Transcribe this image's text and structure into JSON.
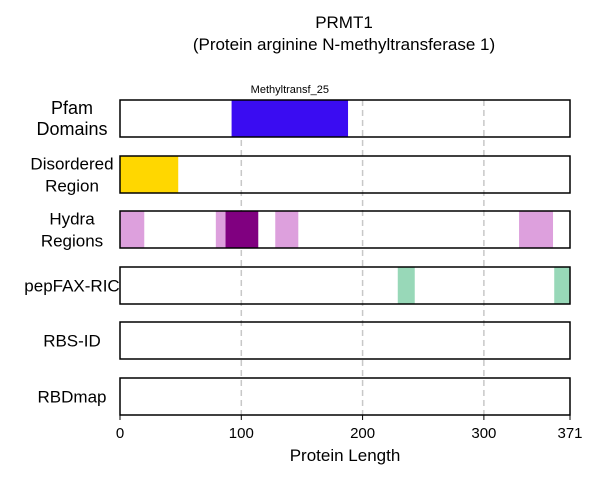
{
  "chart_data": {
    "type": "bar",
    "subtype": "protein-domain-track",
    "title": "PRMT1",
    "subtitle": "(Protein arginine N-methyltransferase 1)",
    "xlabel": "Protein Length",
    "xlim": [
      0,
      371
    ],
    "xticks": [
      0,
      100,
      200,
      300,
      371
    ],
    "grid": {
      "vertical_dashed": [
        100,
        200,
        300
      ]
    },
    "tracks": [
      {
        "label_lines": [
          "Pfam",
          "Domains"
        ],
        "segments": [
          {
            "start": 92,
            "end": 188,
            "color": "#3a0cf2",
            "label": "Methyltransf_25"
          }
        ]
      },
      {
        "label_lines": [
          "Disordered",
          "Region"
        ],
        "segments": [
          {
            "start": 0,
            "end": 48,
            "color": "#ffd700"
          }
        ]
      },
      {
        "label_lines": [
          "Hydra",
          "Regions"
        ],
        "segments": [
          {
            "start": 0,
            "end": 20,
            "color": "#dda0dd"
          },
          {
            "start": 79,
            "end": 87,
            "color": "#dda0dd"
          },
          {
            "start": 87,
            "end": 114,
            "color": "#800080"
          },
          {
            "start": 128,
            "end": 147,
            "color": "#dda0dd"
          },
          {
            "start": 329,
            "end": 357,
            "color": "#dda0dd"
          }
        ]
      },
      {
        "label_lines": [
          "pepFAX-RIC"
        ],
        "segments": [
          {
            "start": 229,
            "end": 243,
            "color": "#98d8b8"
          },
          {
            "start": 358,
            "end": 371,
            "color": "#98d8b8"
          }
        ]
      },
      {
        "label_lines": [
          "RBS-ID"
        ],
        "segments": []
      },
      {
        "label_lines": [
          "RBDmap"
        ],
        "segments": []
      }
    ]
  }
}
